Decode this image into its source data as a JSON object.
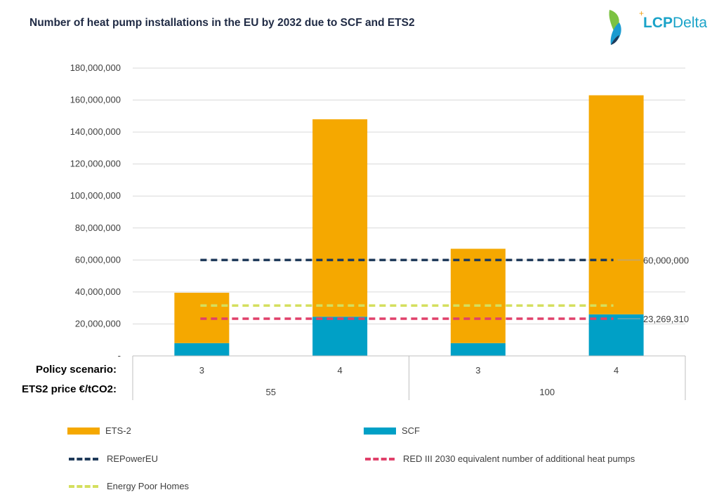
{
  "header": {
    "title": "Number of heat pump installations in the EU by 2032 due to SCF and ETS2",
    "logo_text_a": "LCP",
    "logo_text_b": "Delta",
    "logo_plus": "+"
  },
  "colors": {
    "ets2": "#f5a800",
    "scf": "#00a0c6",
    "repowereu": "#1f3a5a",
    "red3": "#e0406a",
    "energy_poor": "#d4df5e",
    "grid": "#d9d9d9",
    "axis_text": "#404040"
  },
  "chart_data": {
    "type": "bar",
    "stacked": true,
    "title": "Number of heat pump installations in the EU by 2032 due to SCF and ETS2",
    "ylim": [
      0,
      180000000
    ],
    "y_ticks": [
      "-",
      "20,000,000",
      "40,000,000",
      "60,000,000",
      "80,000,000",
      "100,000,000",
      "120,000,000",
      "140,000,000",
      "160,000,000",
      "180,000,000"
    ],
    "y_tick_values": [
      0,
      20000000,
      40000000,
      60000000,
      80000000,
      100000000,
      120000000,
      140000000,
      160000000,
      180000000
    ],
    "grid": true,
    "row_labels": [
      "Policy scenario:",
      "ETS2 price €/tCO2:"
    ],
    "categories": [
      "3",
      "4",
      "3",
      "4"
    ],
    "groups": [
      {
        "label": "55",
        "span": 2
      },
      {
        "label": "100",
        "span": 2
      }
    ],
    "series": [
      {
        "name": "SCF",
        "values": [
          8000000,
          24500000,
          8000000,
          26000000
        ]
      },
      {
        "name": "ETS-2",
        "values": [
          31500000,
          123500000,
          59000000,
          137000000
        ]
      }
    ],
    "reference_lines": [
      {
        "name": "REPowerEU",
        "value": 60000000,
        "label": "60,000,000"
      },
      {
        "name": "Energy Poor Homes",
        "value": 31500000,
        "label": ""
      },
      {
        "name": "RED III 2030 equivalent number of additional heat pumps",
        "value": 23269310,
        "label": "23,269,310"
      }
    ],
    "legend_position": "bottom"
  },
  "legend": [
    {
      "name": "ETS-2",
      "kind": "bar",
      "color": "#f5a800"
    },
    {
      "name": "SCF",
      "kind": "bar",
      "color": "#00a0c6"
    },
    {
      "name": "REPowerEU",
      "kind": "dash",
      "color": "#1f3a5a"
    },
    {
      "name": "RED III 2030 equivalent number of additional heat pumps",
      "kind": "dash",
      "color": "#e0406a"
    },
    {
      "name": "Energy Poor Homes",
      "kind": "dash",
      "color": "#d4df5e"
    }
  ]
}
